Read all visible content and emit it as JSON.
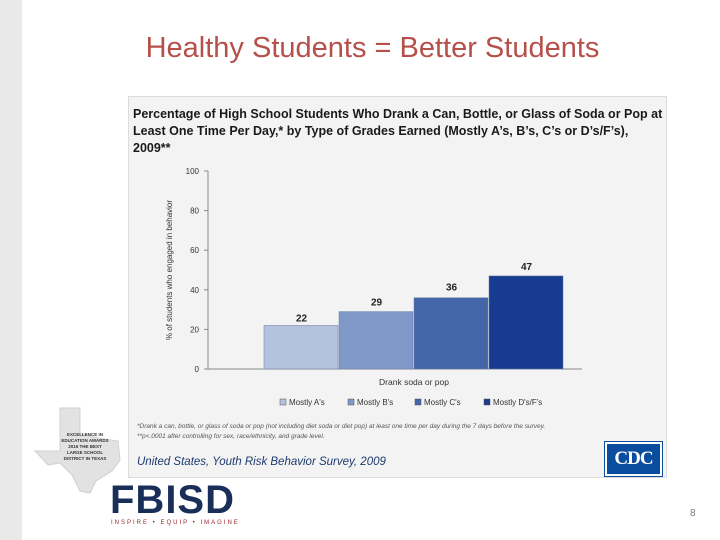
{
  "slide": {
    "title": "Healthy Students = Better Students",
    "page_number": "8"
  },
  "chart_data": {
    "type": "bar",
    "title": "Percentage of High School Students Who Drank a Can, Bottle, or Glass of Soda or Pop at Least One Time Per Day,* by Type of Grades Earned (Mostly A’s, B’s, C’s or D’s/F’s), 2009**",
    "ylabel": "% of students who engaged in behavior",
    "xlabel": "Drank soda or pop",
    "ylim": [
      0,
      100
    ],
    "yticks": [
      0,
      20,
      40,
      60,
      80,
      100
    ],
    "categories": [
      "Drank soda or pop"
    ],
    "series": [
      {
        "name": "Mostly A's",
        "values": [
          22
        ],
        "color": "#b4c2de"
      },
      {
        "name": "Mostly B's",
        "values": [
          29
        ],
        "color": "#7f98c7"
      },
      {
        "name": "Mostly C's",
        "values": [
          36
        ],
        "color": "#4565a9"
      },
      {
        "name": "Mostly D's/F's",
        "values": [
          47
        ],
        "color": "#173b8e"
      }
    ],
    "grid": false,
    "legend_position": "bottom"
  },
  "footnotes": {
    "line1": "*Drank a can, bottle, or glass of soda or pop (not including diet soda or diet pop) at least one time per day during the 7 days before the survey.",
    "line2": "**p<.0001 after controlling for sex, race/ethnicity, and grade level."
  },
  "source": "United States, Youth Risk Behavior Survey, 2009",
  "cdc_logo": "CDC",
  "district_logo": {
    "text": "FBISD",
    "tagline": "INSPIRE • EQUIP • IMAGINE",
    "award": "EXCELLENCE IN EDUCATION AWARDS 2016 THE BEST LARGE SCHOOL DISTRICT IN TEXAS"
  },
  "colors": {
    "title": "#b5504a",
    "cdc_blue": "#0a4d9e",
    "logo_navy": "#1a2e5a",
    "logo_red": "#9b2226"
  }
}
